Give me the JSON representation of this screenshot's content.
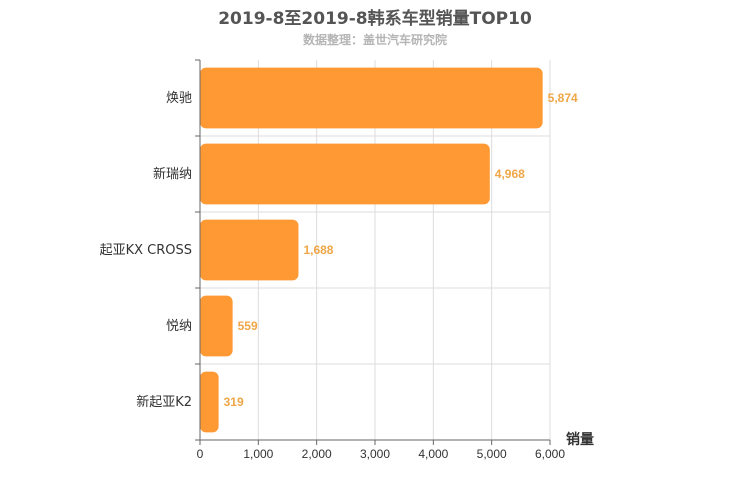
{
  "chart_data": {
    "type": "bar",
    "orientation": "horizontal",
    "title": "2019-8至2019-8韩系车型销量TOP10",
    "subtitle": "数据整理：盖世汽车研究院",
    "categories": [
      "焕驰",
      "新瑞纳",
      "起亚KX CROSS",
      "悦纳",
      "新起亚K2"
    ],
    "values": [
      5874,
      4968,
      1688,
      559,
      319
    ],
    "value_labels": [
      "5,874",
      "4,968",
      "1,688",
      "559",
      "319"
    ],
    "xlabel": "销量",
    "ylabel": "",
    "xlim": [
      0,
      6000
    ],
    "xticks": [
      0,
      1000,
      2000,
      3000,
      4000,
      5000,
      6000
    ],
    "xtick_labels": [
      "0",
      "1,000",
      "2,000",
      "3,000",
      "4,000",
      "5,000",
      "6,000"
    ],
    "grid": true,
    "colors": {
      "bar": "#ff9933",
      "value_label": "#f0a646",
      "axis": "#666666",
      "grid": "#dddddd",
      "text": "#333333"
    }
  }
}
